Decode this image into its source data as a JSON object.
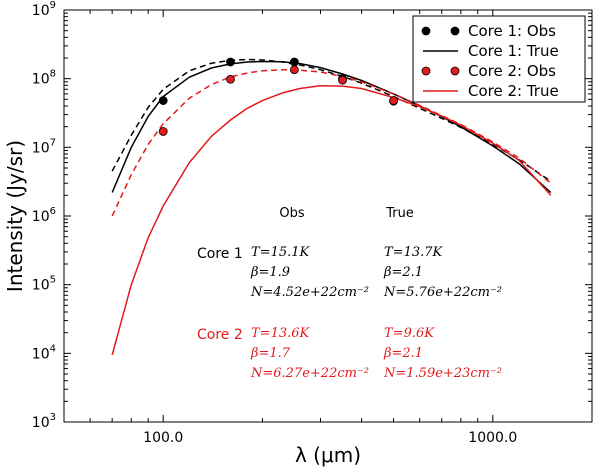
{
  "chart_data": {
    "type": "line",
    "xscale": "log",
    "yscale": "log",
    "xlim": [
      50,
      2000
    ],
    "ylim": [
      1000,
      1000000000
    ],
    "xlabel": "λ (μm)",
    "ylabel": "Intensity (Jy/sr)",
    "x_ticks": [
      {
        "value": 100,
        "label": "100.0"
      },
      {
        "value": 1000,
        "label": "1000.0"
      }
    ],
    "y_ticks": [
      {
        "value": 1000,
        "base": "10",
        "exp": "3"
      },
      {
        "value": 10000,
        "base": "10",
        "exp": "4"
      },
      {
        "value": 100000,
        "base": "10",
        "exp": "5"
      },
      {
        "value": 1000000,
        "base": "10",
        "exp": "6"
      },
      {
        "value": 10000000,
        "base": "10",
        "exp": "7"
      },
      {
        "value": 100000000,
        "base": "10",
        "exp": "8"
      },
      {
        "value": 1000000000,
        "base": "10",
        "exp": "9"
      }
    ],
    "series": [
      {
        "name": "Core 1: Obs",
        "kind": "points",
        "color": "#000000",
        "x": [
          100,
          160,
          250,
          350,
          500
        ],
        "y": [
          48000000,
          175000000,
          175000000,
          100000000,
          47000000
        ]
      },
      {
        "name": "Core 1: True",
        "kind": "line",
        "color": "#000000",
        "x": [
          70,
          80,
          90,
          100,
          120,
          140,
          160,
          180,
          200,
          230,
          260,
          300,
          350,
          400,
          500,
          600,
          700,
          800,
          1000,
          1200,
          1500
        ],
        "y": [
          2200000,
          10000000,
          28000000,
          55000000,
          105000000,
          143000000,
          164000000,
          175000000,
          178000000,
          176000000,
          166000000,
          145000000,
          117000000,
          94000000,
          60000000,
          40000000,
          28000000,
          20000000,
          10500000,
          5800000,
          2200000
        ]
      },
      {
        "name": "Core 1: Obs fit",
        "kind": "dashed",
        "color": "#000000",
        "legend": false,
        "x": [
          70,
          80,
          90,
          100,
          120,
          140,
          160,
          180,
          200,
          230,
          260,
          300,
          350,
          400,
          500,
          600,
          700,
          800,
          1000,
          1200,
          1500
        ],
        "y": [
          4500000,
          15000000,
          38000000,
          70000000,
          130000000,
          168000000,
          185000000,
          190000000,
          187000000,
          175000000,
          158000000,
          135000000,
          108000000,
          86000000,
          55000000,
          37000000,
          26500000,
          19500000,
          11000000,
          6600000,
          3200000
        ]
      },
      {
        "name": "Core 2: Obs",
        "kind": "points",
        "color": "#e31a1c",
        "x": [
          100,
          160,
          250,
          350,
          500
        ],
        "y": [
          17000000,
          98000000,
          135000000,
          95000000,
          48000000
        ]
      },
      {
        "name": "Core 2: True",
        "kind": "line",
        "color": "#e31a1c",
        "x": [
          70,
          80,
          90,
          100,
          120,
          140,
          160,
          180,
          200,
          230,
          260,
          300,
          350,
          400,
          500,
          600,
          700,
          800,
          1000,
          1200,
          1500
        ],
        "y": [
          9500,
          100000,
          480000,
          1400000,
          6000000,
          14500000,
          25000000,
          37000000,
          48000000,
          62000000,
          72000000,
          79000000,
          78000000,
          72000000,
          53000000,
          39000000,
          28500000,
          21000000,
          11500000,
          6500000,
          2000000
        ]
      },
      {
        "name": "Core 2: Obs fit",
        "kind": "dashed",
        "color": "#e31a1c",
        "legend": false,
        "x": [
          70,
          80,
          90,
          100,
          120,
          140,
          160,
          180,
          200,
          230,
          260,
          300,
          350,
          400,
          500,
          600,
          700,
          800,
          1000,
          1200,
          1500
        ],
        "y": [
          1000000,
          4000000,
          11000000,
          22000000,
          52000000,
          82000000,
          106000000,
          121000000,
          130000000,
          135000000,
          133000000,
          125000000,
          108000000,
          90000000,
          60000000,
          41000000,
          29000000,
          21500000,
          12000000,
          7000000,
          3000000
        ]
      }
    ],
    "legend": {
      "position": "top-right",
      "entries": [
        "Core 1: Obs",
        "Core 1: True",
        "Core 2: Obs",
        "Core 2: True"
      ]
    },
    "annotations": {
      "col_obs": "Obs",
      "col_true": "True",
      "cores": [
        {
          "label": "Core 1",
          "color": "#000000",
          "obs": [
            "T=15.1K",
            "β=1.9",
            "N=4.52e+22cm⁻²"
          ],
          "true": [
            "T=13.7K",
            "β=2.1",
            "N=5.76e+22cm⁻²"
          ]
        },
        {
          "label": "Core 2",
          "color": "#e31a1c",
          "obs": [
            "T=13.6K",
            "β=1.7",
            "N=6.27e+22cm⁻²"
          ],
          "true": [
            "T=9.6K",
            "β=2.1",
            "N=1.59e+23cm⁻²"
          ]
        }
      ]
    }
  }
}
